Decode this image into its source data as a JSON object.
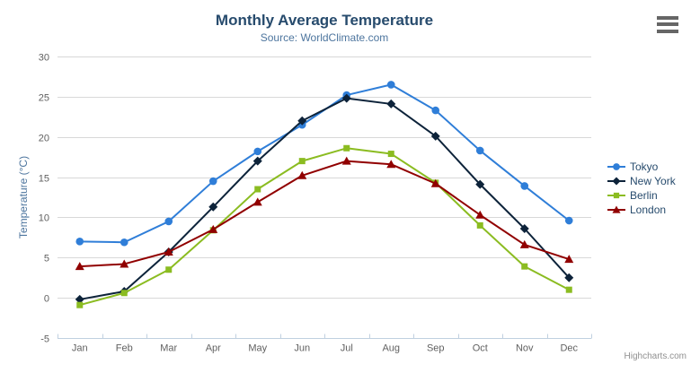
{
  "header": {
    "title": "Monthly Average Temperature",
    "subtitle": "Source: WorldClimate.com"
  },
  "credits": {
    "label": "Highcharts.com"
  },
  "context_menu": {
    "icon": "hamburger-menu-icon"
  },
  "colors": {
    "title": "#274b6d",
    "subtitle": "#4d759e",
    "axis_title": "#4d759e",
    "axis_labels": "#606060",
    "grid_line": "#d8d8d8",
    "axis_line": "#c0d0e0",
    "legend_text": "#274b6d",
    "credits_text": "#909090",
    "menu_icon": "#666666",
    "background": "#ffffff"
  },
  "chart_data": {
    "type": "line",
    "title": "Monthly Average Temperature",
    "subtitle": "Source: WorldClimate.com",
    "xlabel": "",
    "ylabel": "Temperature (°C)",
    "ylim": [
      -5,
      30
    ],
    "y_tick_interval": 5,
    "grid": true,
    "legend_position": "right-middle",
    "categories": [
      "Jan",
      "Feb",
      "Mar",
      "Apr",
      "May",
      "Jun",
      "Jul",
      "Aug",
      "Sep",
      "Oct",
      "Nov",
      "Dec"
    ],
    "series": [
      {
        "name": "Tokyo",
        "color": "#2f7ed8",
        "marker": "circle",
        "values": [
          7.0,
          6.9,
          9.5,
          14.5,
          18.2,
          21.5,
          25.2,
          26.5,
          23.3,
          18.3,
          13.9,
          9.6
        ]
      },
      {
        "name": "New York",
        "color": "#0d233a",
        "marker": "diamond",
        "values": [
          -0.2,
          0.8,
          5.7,
          11.3,
          17.0,
          22.0,
          24.8,
          24.1,
          20.1,
          14.1,
          8.6,
          2.5
        ]
      },
      {
        "name": "Berlin",
        "color": "#8bbc21",
        "marker": "square",
        "values": [
          -0.9,
          0.6,
          3.5,
          8.4,
          13.5,
          17.0,
          18.6,
          17.9,
          14.3,
          9.0,
          3.9,
          1.0
        ]
      },
      {
        "name": "London",
        "color": "#910000",
        "marker": "triangle",
        "values": [
          3.9,
          4.2,
          5.7,
          8.5,
          11.9,
          15.2,
          17.0,
          16.6,
          14.2,
          10.3,
          6.6,
          4.8
        ]
      }
    ]
  }
}
